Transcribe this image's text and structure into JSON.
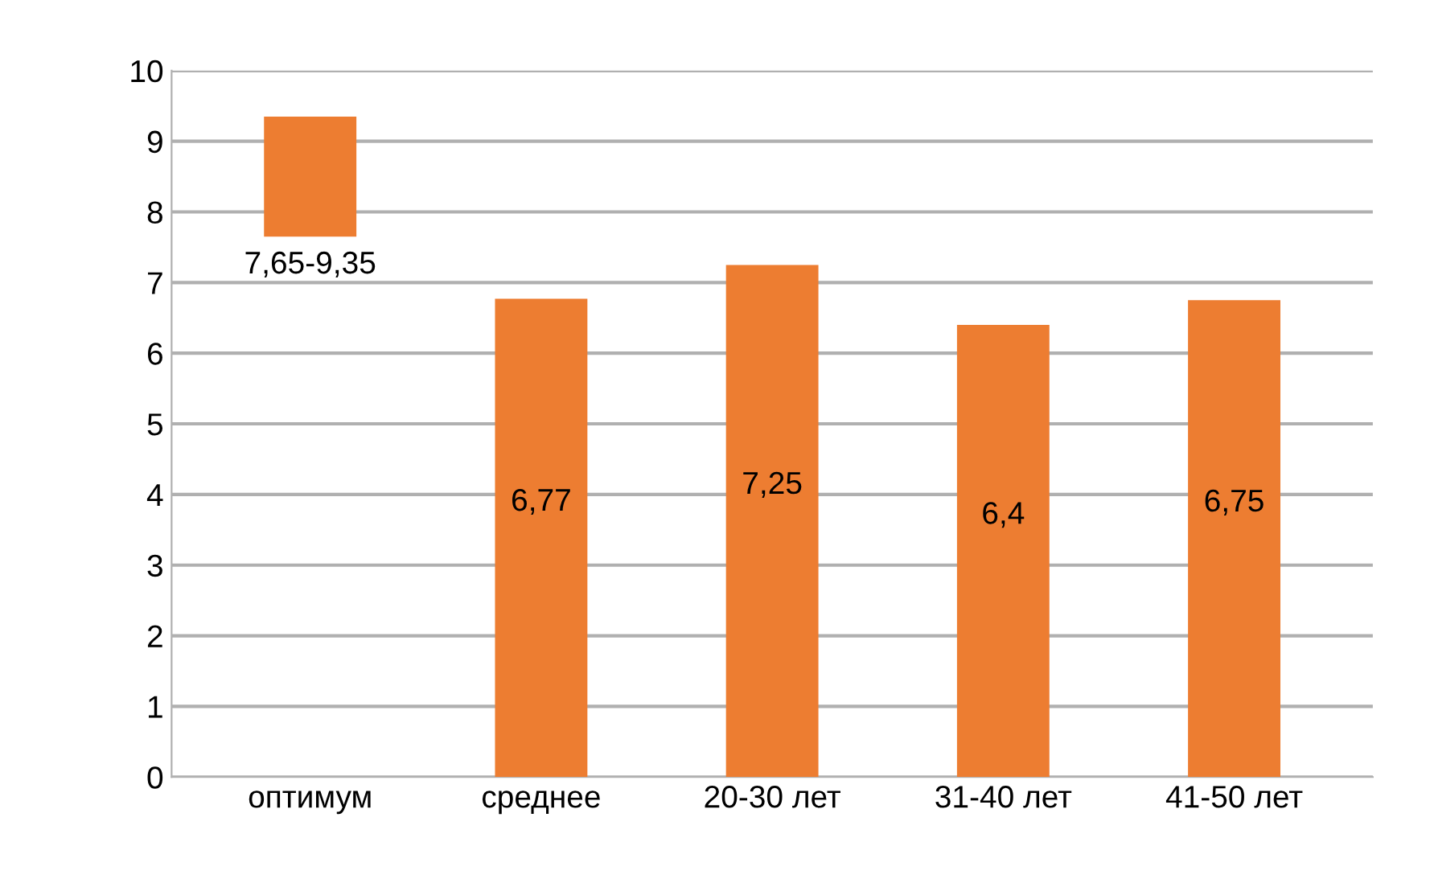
{
  "chart_data": {
    "type": "bar",
    "categories": [
      "оптимум",
      "среднее",
      "20-30 лет",
      "31-40 лет",
      "41-50 лет"
    ],
    "values": [
      1.7,
      6.77,
      7.25,
      6.4,
      6.75
    ],
    "base": [
      7.65,
      0,
      0,
      0,
      0
    ],
    "value_labels": [
      "7,65-9,35",
      "6,77",
      "7,25",
      "6,4",
      "6,75"
    ],
    "color": "#ed7d31",
    "ylim": [
      0,
      10
    ],
    "yticks": [
      0,
      1,
      2,
      3,
      4,
      5,
      6,
      7,
      8,
      9,
      10
    ],
    "grid": "y"
  }
}
